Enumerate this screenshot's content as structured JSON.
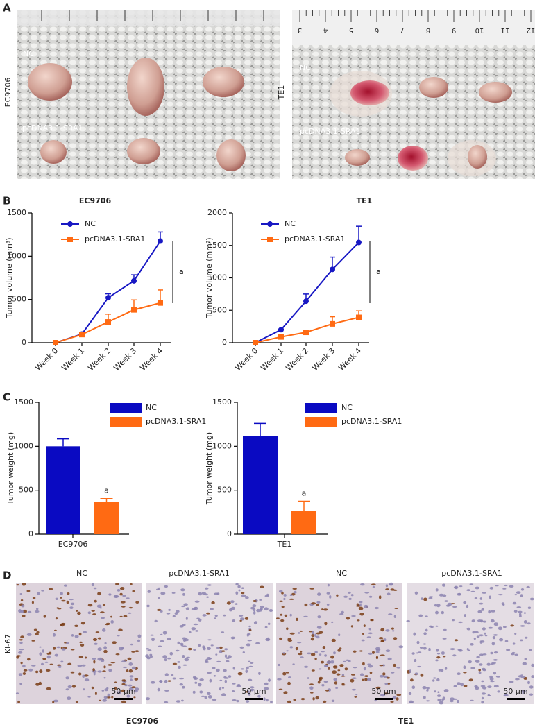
{
  "panel_labels": [
    "A",
    "B",
    "C",
    "D"
  ],
  "photos": [
    {
      "side_label": "EC9706",
      "groups": [
        "NC",
        "pcDNA3.1-SRA1"
      ]
    },
    {
      "side_label": "TE1",
      "groups": [
        "NC",
        "pcDNA3.1-SRA1"
      ],
      "ruler_numbers": [
        "3",
        "4",
        "5",
        "6",
        "7",
        "8",
        "9",
        "10",
        "11",
        "12"
      ]
    }
  ],
  "chart_data": [
    {
      "type": "line",
      "title": "EC9706",
      "y_label": "Tumor volume (mm³)",
      "categories": [
        "Week 0",
        "Week 1",
        "Week 2",
        "Week 3",
        "Week 4"
      ],
      "series": [
        {
          "name": "NC",
          "color": "#1818c4",
          "values": [
            0,
            100,
            520,
            715,
            1175
          ],
          "errors": [
            0,
            10,
            45,
            70,
            105
          ]
        },
        {
          "name": "pcDNA3.1-SRA1",
          "color": "#ff6a13",
          "values": [
            0,
            95,
            240,
            380,
            460
          ],
          "errors": [
            0,
            10,
            90,
            115,
            150
          ]
        }
      ],
      "ylim": [
        0,
        1500
      ],
      "yticks": [
        0,
        500,
        1000,
        1500
      ],
      "annotation": "a"
    },
    {
      "type": "line",
      "title": "TE1",
      "y_label": "Tumor volume (mm³)",
      "categories": [
        "Week 0",
        "Week 1",
        "Week 2",
        "Week 3",
        "Week 4"
      ],
      "series": [
        {
          "name": "NC",
          "color": "#1818c4",
          "values": [
            0,
            200,
            640,
            1130,
            1545
          ],
          "errors": [
            0,
            10,
            110,
            190,
            250
          ]
        },
        {
          "name": "pcDNA3.1-SRA1",
          "color": "#ff6a13",
          "values": [
            0,
            90,
            160,
            290,
            390
          ],
          "errors": [
            0,
            10,
            30,
            110,
            100
          ]
        }
      ],
      "ylim": [
        0,
        2000
      ],
      "yticks": [
        0,
        500,
        1000,
        1500,
        2000
      ],
      "annotation": "a"
    },
    {
      "type": "bar",
      "y_label": "Tumor weight (mg)",
      "categories": [
        "EC9706"
      ],
      "series": [
        {
          "name": "NC",
          "color": "#0a0ac2",
          "values": [
            1000
          ],
          "errors": [
            85
          ]
        },
        {
          "name": "pcDNA3.1-SRA1",
          "color": "#ff6a13",
          "values": [
            370
          ],
          "errors": [
            35
          ]
        }
      ],
      "ylim": [
        0,
        1500
      ],
      "yticks": [
        0,
        500,
        1000,
        1500
      ],
      "annotation": "a"
    },
    {
      "type": "bar",
      "y_label": "Tumor weight (mg)",
      "categories": [
        "TE1"
      ],
      "series": [
        {
          "name": "NC",
          "color": "#0a0ac2",
          "values": [
            1120
          ],
          "errors": [
            140
          ]
        },
        {
          "name": "pcDNA3.1-SRA1",
          "color": "#ff6a13",
          "values": [
            265
          ],
          "errors": [
            110
          ]
        }
      ],
      "ylim": [
        0,
        1500
      ],
      "yticks": [
        0,
        500,
        1000,
        1500
      ],
      "annotation": "a"
    }
  ],
  "histology": {
    "columns": [
      "NC",
      "pcDNA3.1-SRA1",
      "NC",
      "pcDNA3.1-SRA1"
    ],
    "row_label": "Ki-67",
    "scale_bar": "50 µm",
    "groups": [
      "EC9706",
      "TE1"
    ]
  }
}
